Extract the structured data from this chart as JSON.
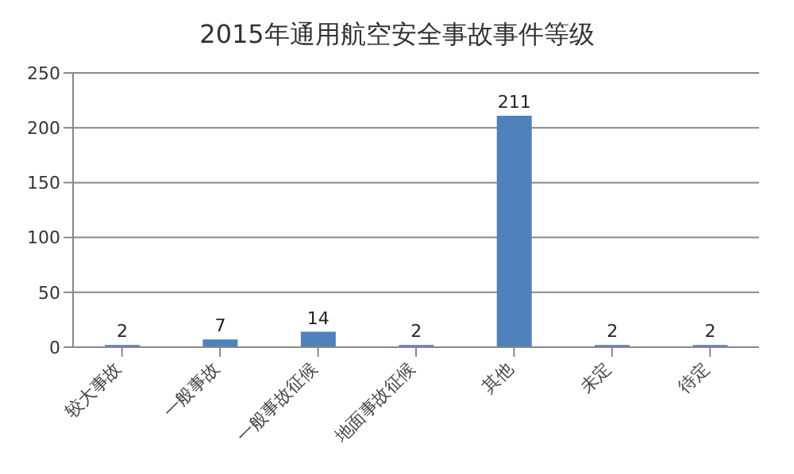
{
  "chart_data": {
    "type": "bar",
    "title": "2015年通用航空安全事故事件等级",
    "categories": [
      "较大事故",
      "一般事故",
      "一般事故征候",
      "地面事故征候",
      "其他",
      "未定",
      "待定"
    ],
    "values": [
      2,
      7,
      14,
      2,
      211,
      2,
      2
    ],
    "color": "#4f81bd",
    "ylim": [
      0,
      250
    ],
    "yticks": [
      0,
      50,
      100,
      150,
      200,
      250
    ],
    "grid": "y",
    "data_labels": true
  }
}
